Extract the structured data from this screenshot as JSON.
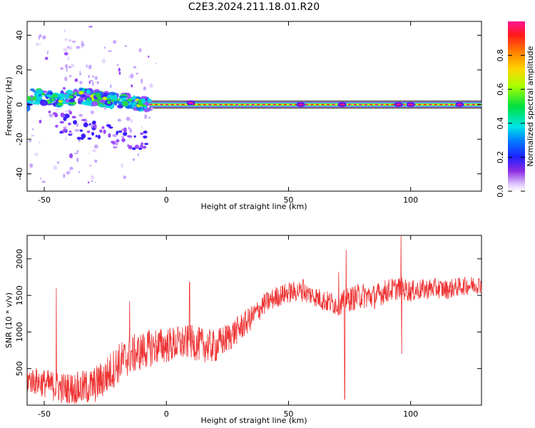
{
  "title": "C2E3.2024.211.18.01.R20",
  "chart_data": [
    {
      "type": "heatmap",
      "xlabel": "Height of straight line (km)",
      "ylabel": "Frequency (Hz)",
      "xlim": [
        -57,
        129
      ],
      "ylim": [
        -50,
        48
      ],
      "xticks": [
        -50,
        0,
        50,
        100
      ],
      "yticks": [
        -40,
        -20,
        0,
        20,
        40
      ],
      "colorbar": {
        "label": "Normalized spectral amplitude",
        "range": [
          0,
          1
        ],
        "ticks": [
          0.0,
          0.2,
          0.4,
          0.6,
          0.8
        ]
      },
      "ridge": {
        "frequency": 0,
        "x_start": -7,
        "x_end": 129
      },
      "ridge_band_hz": [
        -2,
        2
      ],
      "noisy_segment": {
        "x_range": [
          -57,
          -7
        ],
        "frequency_trend": [
          [
            -55,
            5
          ],
          [
            -50,
            4
          ],
          [
            -45,
            3
          ],
          [
            -40,
            4
          ],
          [
            -35,
            5
          ],
          [
            -30,
            4
          ],
          [
            -25,
            3
          ],
          [
            -20,
            2
          ],
          [
            -15,
            2
          ],
          [
            -10,
            1
          ],
          [
            -7,
            0
          ]
        ]
      },
      "bright_spots": [
        {
          "x": 10,
          "f": 1
        },
        {
          "x": 55,
          "f": 0
        },
        {
          "x": 72,
          "f": 0
        },
        {
          "x": 95,
          "f": 0
        },
        {
          "x": 100,
          "f": 0
        },
        {
          "x": 120,
          "f": 0
        }
      ]
    },
    {
      "type": "line",
      "xlabel": "Height of straight line (km)",
      "ylabel": "SNR (10 * v/v)",
      "xlim": [
        -57,
        129
      ],
      "ylim": [
        0,
        2320
      ],
      "xticks": [
        -50,
        0,
        50,
        100
      ],
      "yticks": [
        500,
        1000,
        1500,
        2000
      ],
      "color": "#ee3333",
      "series": [
        {
          "trend": [
            [
              -57,
              350
            ],
            [
              -50,
              300
            ],
            [
              -45,
              250
            ],
            [
              -40,
              220
            ],
            [
              -35,
              230
            ],
            [
              -30,
              260
            ],
            [
              -25,
              380
            ],
            [
              -20,
              560
            ],
            [
              -15,
              680
            ],
            [
              -10,
              740
            ],
            [
              -5,
              800
            ],
            [
              0,
              820
            ],
            [
              5,
              840
            ],
            [
              10,
              860
            ],
            [
              15,
              820
            ],
            [
              20,
              800
            ],
            [
              25,
              920
            ],
            [
              30,
              1050
            ],
            [
              35,
              1200
            ],
            [
              40,
              1380
            ],
            [
              45,
              1480
            ],
            [
              50,
              1540
            ],
            [
              55,
              1560
            ],
            [
              60,
              1500
            ],
            [
              65,
              1420
            ],
            [
              70,
              1380
            ],
            [
              75,
              1450
            ],
            [
              80,
              1500
            ],
            [
              85,
              1480
            ],
            [
              90,
              1560
            ],
            [
              95,
              1600
            ],
            [
              100,
              1560
            ],
            [
              105,
              1580
            ],
            [
              110,
              1600
            ],
            [
              115,
              1580
            ],
            [
              120,
              1620
            ],
            [
              125,
              1640
            ],
            [
              129,
              1650
            ]
          ],
          "noise_amplitude": [
            [
              -57,
              180
            ],
            [
              -20,
              280
            ],
            [
              0,
              250
            ],
            [
              20,
              230
            ],
            [
              40,
              150
            ],
            [
              60,
              140
            ],
            [
              80,
              180
            ],
            [
              100,
              150
            ],
            [
              129,
              120
            ]
          ],
          "spikes": [
            {
              "x": -45,
              "y": 1600
            },
            {
              "x": -15,
              "y": 1420
            },
            {
              "x": 9.5,
              "y": 1680
            },
            {
              "x": 56,
              "y": 1720
            },
            {
              "x": 70.5,
              "y": 1820
            },
            {
              "x": 73,
              "y": 80
            },
            {
              "x": 73.6,
              "y": 2120
            },
            {
              "x": 96,
              "y": 2320
            },
            {
              "x": 96.3,
              "y": 700
            }
          ]
        }
      ]
    }
  ]
}
